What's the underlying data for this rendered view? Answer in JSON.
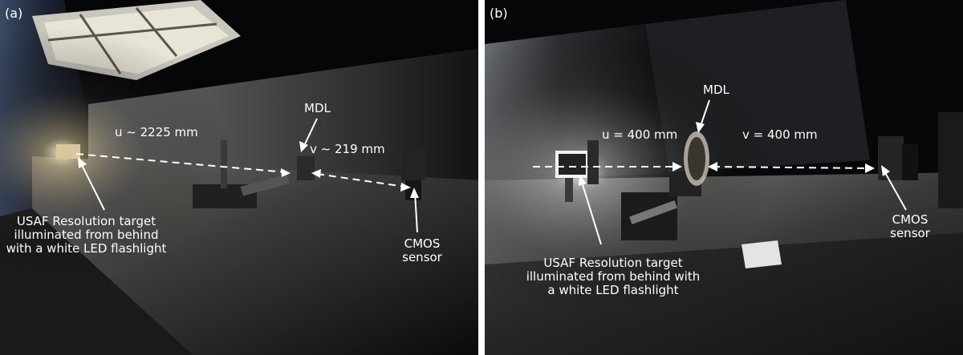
{
  "panels": [
    {
      "tag": "(a)",
      "u_label": "u ~ 2225 mm",
      "v_label": "v ~ 219 mm",
      "mdl_label": "MDL",
      "target_label": "USAF Resolution target illuminated from behind with a white LED flashlight",
      "sensor_label": "CMOS sensor"
    },
    {
      "tag": "(b)",
      "u_label": "u = 400 mm",
      "v_label": "v = 400 mm",
      "mdl_label": "MDL",
      "target_label": "USAF Resolution target illuminated from behind with a white LED flashlight",
      "sensor_label": "CMOS sensor"
    }
  ]
}
